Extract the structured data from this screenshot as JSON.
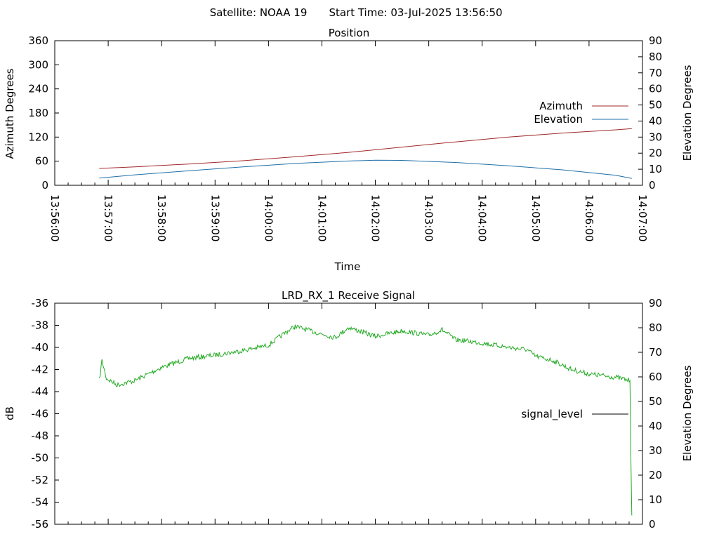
{
  "header": {
    "satellite_text": "Satellite: NOAA 19",
    "start_time_text": "Start Time: 03-Jul-2025 13:56:50"
  },
  "chart_data": [
    {
      "type": "line",
      "title": "Position",
      "xlabel": "Time",
      "ylabel": "Azimuth Degrees",
      "y2label": "Elevation Degrees",
      "xlim_seconds_of_day": [
        50160,
        50820
      ],
      "x_ticks": [
        "13:56:00",
        "13:57:00",
        "13:58:00",
        "13:59:00",
        "14:00:00",
        "14:01:00",
        "14:02:00",
        "14:03:00",
        "14:04:00",
        "14:05:00",
        "14:06:00",
        "14:07:00"
      ],
      "ylim": [
        0,
        360
      ],
      "y_ticks": [
        "0",
        "60",
        "120",
        "180",
        "240",
        "300",
        "360"
      ],
      "y2lim": [
        0,
        90
      ],
      "y2_ticks": [
        "0",
        "10",
        "20",
        "30",
        "40",
        "50",
        "60",
        "70",
        "80",
        "90"
      ],
      "legend_position": "right",
      "series": [
        {
          "name": "Azimuth",
          "axis": "y",
          "color": "#a0282a",
          "points": [
            [
              "13:56:50",
              42
            ],
            [
              "13:57:30",
              46
            ],
            [
              "13:58:30",
              53
            ],
            [
              "13:59:30",
              61
            ],
            [
              "14:00:30",
              71
            ],
            [
              "14:01:30",
              82
            ],
            [
              "14:02:30",
              95
            ],
            [
              "14:03:30",
              108
            ],
            [
              "14:04:30",
              120
            ],
            [
              "14:05:30",
              130
            ],
            [
              "14:06:30",
              138
            ],
            [
              "14:06:48",
              141
            ]
          ]
        },
        {
          "name": "Elevation",
          "axis": "y2",
          "color": "#1f6fa8",
          "points": [
            [
              "13:56:50",
              4.5
            ],
            [
              "13:57:30",
              6.5
            ],
            [
              "13:58:30",
              9.0
            ],
            [
              "13:59:30",
              11.4
            ],
            [
              "14:00:30",
              13.6
            ],
            [
              "14:01:30",
              15.1
            ],
            [
              "14:02:00",
              15.6
            ],
            [
              "14:02:30",
              15.5
            ],
            [
              "14:03:30",
              14.2
            ],
            [
              "14:04:30",
              12.1
            ],
            [
              "14:05:30",
              9.6
            ],
            [
              "14:06:30",
              6.2
            ],
            [
              "14:06:48",
              4.3
            ]
          ]
        }
      ]
    },
    {
      "type": "line",
      "title": "LRD_RX_1 Receive Signal",
      "ylabel": "dB",
      "y2label": "Elevation Degrees",
      "xlim_seconds_of_day": [
        50160,
        50820
      ],
      "ylim": [
        -56,
        -36
      ],
      "y_ticks": [
        "-36",
        "-38",
        "-40",
        "-42",
        "-44",
        "-46",
        "-48",
        "-50",
        "-52",
        "-54",
        "-56"
      ],
      "y2lim": [
        0,
        90
      ],
      "y2_ticks": [
        "0",
        "10",
        "20",
        "30",
        "40",
        "50",
        "60",
        "70",
        "80",
        "90"
      ],
      "legend_position": "right",
      "series": [
        {
          "name": "signal_level",
          "axis": "y",
          "color": "#22aa22",
          "legend_color": "#000000",
          "points": [
            [
              "13:56:50",
              -43.0
            ],
            [
              "13:56:53",
              -41.2
            ],
            [
              "13:56:58",
              -42.8
            ],
            [
              "13:57:10",
              -43.4
            ],
            [
              "13:57:30",
              -43.0
            ],
            [
              "13:58:00",
              -41.8
            ],
            [
              "13:58:30",
              -41.0
            ],
            [
              "13:59:00",
              -40.7
            ],
            [
              "13:59:30",
              -40.3
            ],
            [
              "14:00:00",
              -39.8
            ],
            [
              "14:00:20",
              -38.6
            ],
            [
              "14:00:30",
              -38.1
            ],
            [
              "14:01:00",
              -38.8
            ],
            [
              "14:01:15",
              -39.1
            ],
            [
              "14:01:30",
              -38.2
            ],
            [
              "14:02:00",
              -39.0
            ],
            [
              "14:02:30",
              -38.5
            ],
            [
              "14:03:00",
              -38.9
            ],
            [
              "14:03:15",
              -38.4
            ],
            [
              "14:03:30",
              -39.3
            ],
            [
              "14:04:00",
              -39.6
            ],
            [
              "14:04:30",
              -40.0
            ],
            [
              "14:04:50",
              -40.2
            ],
            [
              "14:05:00",
              -40.8
            ],
            [
              "14:05:20",
              -41.2
            ],
            [
              "14:05:40",
              -42.0
            ],
            [
              "14:06:00",
              -42.4
            ],
            [
              "14:06:30",
              -42.7
            ],
            [
              "14:06:46",
              -43.0
            ],
            [
              "14:06:47",
              -50.0
            ],
            [
              "14:06:48",
              -55.2
            ]
          ]
        }
      ]
    }
  ]
}
